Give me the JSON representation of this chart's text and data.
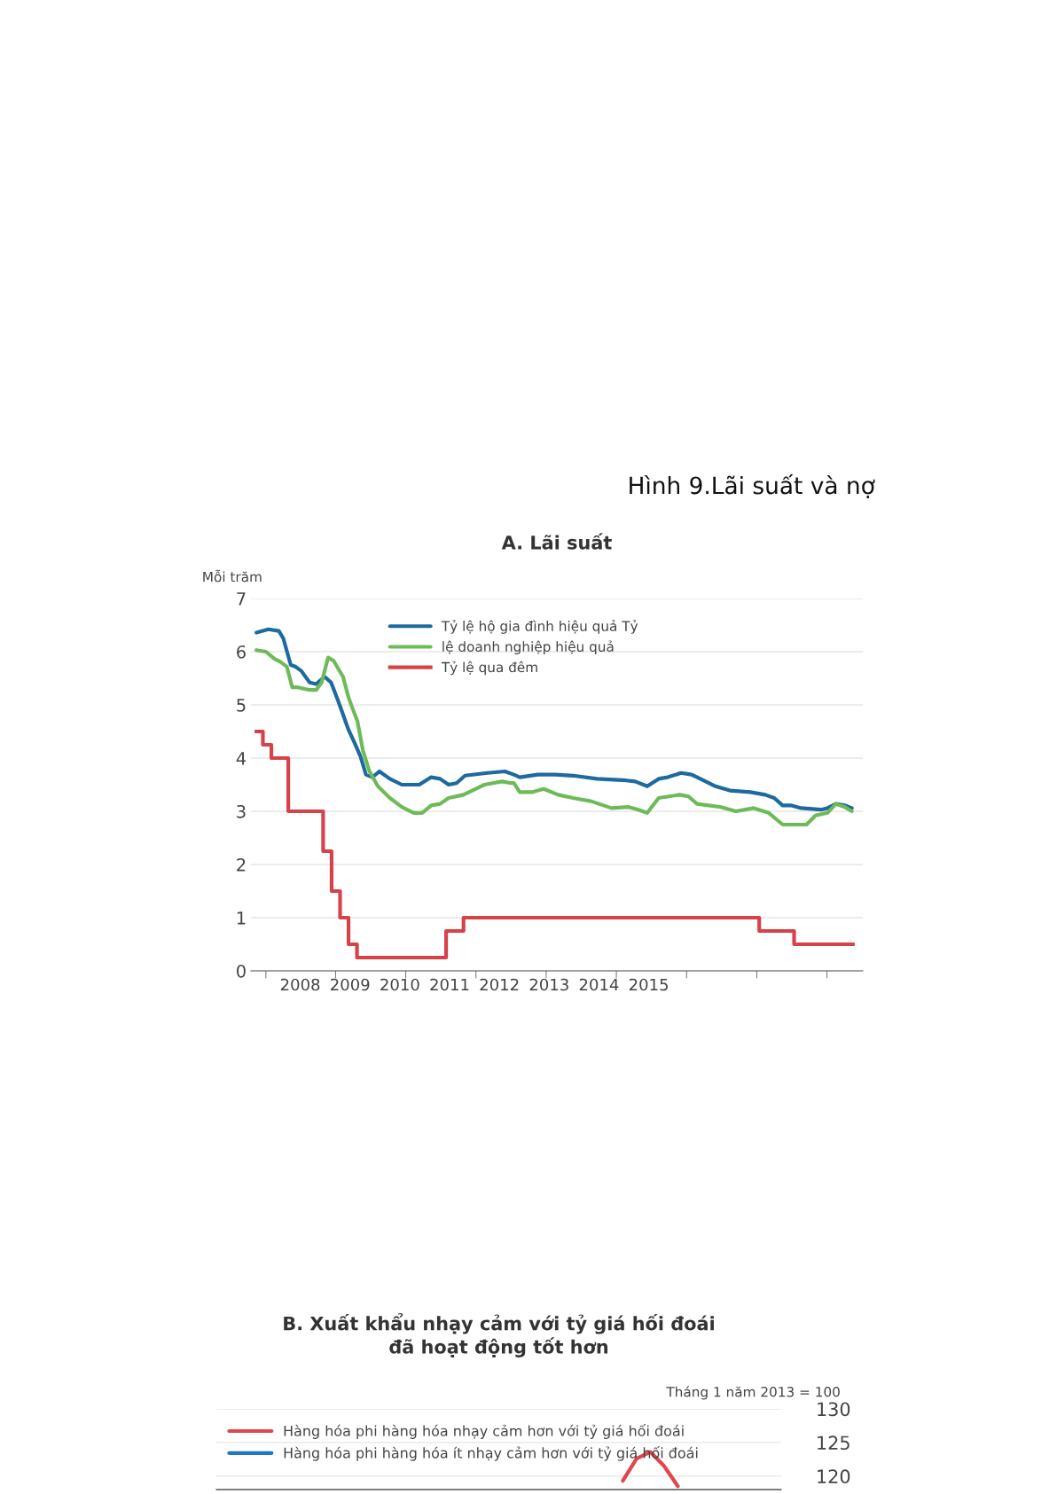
{
  "chart_data": [
    {
      "type": "line",
      "title": "A. Lãi suất",
      "ylabel": "Mỗi trăm",
      "annotations": [
        "Hình 9.Lãi suất và nợ"
      ],
      "xlim": [
        2007.01,
        2019.3
      ],
      "xticks": [
        {
          "value": 2007.31,
          "label": null
        },
        {
          "value": 2008.71,
          "label": null
        },
        {
          "value": 2010.12,
          "label": null
        },
        {
          "value": 2011.53,
          "label": null
        },
        {
          "value": 2012.94,
          "label": null
        },
        {
          "value": 2014.35,
          "label": null
        },
        {
          "value": 2015.76,
          "label": null
        },
        {
          "value": 2017.17,
          "label": null
        },
        {
          "value": 2018.58,
          "label": null
        },
        2008,
        2009,
        2010,
        2011,
        2012,
        2013,
        2014,
        2015
      ],
      "ylim": [
        0,
        7
      ],
      "yticks": [
        0,
        1,
        2,
        3,
        4,
        5,
        6,
        7
      ],
      "grid": "y",
      "legend": "top",
      "series": [
        {
          "name": "Tỷ lệ hộ gia đình hiệu quả Tỷ",
          "color": "#1c6aa0",
          "x": [
            2007.12,
            2007.36,
            2007.57,
            2007.66,
            2007.81,
            2007.9,
            2008.02,
            2008.19,
            2008.32,
            2008.49,
            2008.62,
            2008.78,
            2008.97,
            2009.08,
            2009.21,
            2009.32,
            2009.45,
            2009.59,
            2009.8,
            2010.04,
            2010.39,
            2010.63,
            2010.81,
            2010.98,
            2011.14,
            2011.31,
            2011.76,
            2012.11,
            2012.29,
            2012.41,
            2012.77,
            2013.12,
            2013.48,
            2013.96,
            2014.55,
            2014.73,
            2014.97,
            2015.2,
            2015.38,
            2015.65,
            2015.86,
            2016.1,
            2016.34,
            2016.63,
            2017.04,
            2017.34,
            2017.52,
            2017.69,
            2017.87,
            2018.06,
            2018.46,
            2018.59,
            2018.76,
            2018.94,
            2019.08
          ],
          "values": [
            6.36,
            6.42,
            6.39,
            6.25,
            5.75,
            5.72,
            5.64,
            5.42,
            5.39,
            5.53,
            5.42,
            5.03,
            4.53,
            4.31,
            4.03,
            3.69,
            3.64,
            3.75,
            3.61,
            3.5,
            3.5,
            3.64,
            3.61,
            3.5,
            3.53,
            3.67,
            3.72,
            3.75,
            3.69,
            3.64,
            3.69,
            3.69,
            3.67,
            3.61,
            3.58,
            3.56,
            3.47,
            3.61,
            3.64,
            3.72,
            3.69,
            3.58,
            3.47,
            3.39,
            3.36,
            3.31,
            3.25,
            3.11,
            3.11,
            3.06,
            3.03,
            3.06,
            3.14,
            3.11,
            3.06
          ]
        },
        {
          "name": "lệ doanh nghiệp hiệu quả",
          "color": "#6dbb58",
          "x": [
            2007.12,
            2007.31,
            2007.49,
            2007.6,
            2007.73,
            2007.84,
            2007.95,
            2008.19,
            2008.32,
            2008.43,
            2008.56,
            2008.67,
            2008.86,
            2008.97,
            2009.08,
            2009.15,
            2009.26,
            2009.39,
            2009.56,
            2009.8,
            2010.04,
            2010.28,
            2010.45,
            2010.63,
            2010.81,
            2010.98,
            2011.28,
            2011.52,
            2011.7,
            2012.05,
            2012.24,
            2012.29,
            2012.41,
            2012.65,
            2012.89,
            2013.18,
            2013.48,
            2013.84,
            2014.25,
            2014.6,
            2014.79,
            2014.97,
            2015.2,
            2015.62,
            2015.8,
            2015.97,
            2016.45,
            2016.75,
            2017.11,
            2017.41,
            2017.69,
            2018.17,
            2018.35,
            2018.59,
            2018.76,
            2018.94,
            2019.08
          ],
          "values": [
            6.03,
            6.0,
            5.86,
            5.81,
            5.72,
            5.33,
            5.33,
            5.28,
            5.28,
            5.42,
            5.89,
            5.83,
            5.53,
            5.14,
            4.86,
            4.69,
            4.14,
            3.75,
            3.47,
            3.25,
            3.08,
            2.97,
            2.97,
            3.11,
            3.14,
            3.25,
            3.31,
            3.42,
            3.5,
            3.56,
            3.53,
            3.53,
            3.36,
            3.36,
            3.42,
            3.31,
            3.25,
            3.19,
            3.06,
            3.08,
            3.03,
            2.97,
            3.25,
            3.31,
            3.28,
            3.14,
            3.08,
            3.0,
            3.06,
            2.97,
            2.75,
            2.75,
            2.92,
            2.97,
            3.14,
            3.08,
            3.0
          ]
        },
        {
          "name": "Tỷ lệ qua đêm",
          "type": "step",
          "color": "#d6424a",
          "x": [
            2007.12,
            2007.25,
            2007.42,
            2007.76,
            2008.46,
            2008.63,
            2008.8,
            2008.97,
            2009.14,
            2010.93,
            2011.28,
            2017.22,
            2017.92,
            2019.1
          ],
          "values": [
            4.5,
            4.25,
            4.0,
            3.0,
            2.25,
            1.5,
            1.0,
            0.5,
            0.25,
            0.75,
            1.0,
            0.75,
            0.5,
            0.5
          ]
        }
      ]
    },
    {
      "type": "line",
      "title": "B. Xuất khẩu nhạy cảm với tỷ giá hối đoái\nđã hoạt động tốt hơn",
      "ylabel": "Tháng 1 năm 2013 = 100",
      "categories": [
        null,
        null,
        null,
        null,
        null,
        null,
        null,
        null,
        null,
        null,
        null,
        null,
        null,
        null,
        null,
        null,
        null,
        null,
        null,
        null,
        null,
        null,
        null,
        null,
        null,
        null,
        null,
        null,
        null,
        null,
        null,
        null,
        null,
        null,
        null,
        null,
        null,
        null,
        null,
        null,
        null
      ],
      "ylim": [
        118,
        130
      ],
      "yticks": [
        120,
        125,
        130
      ],
      "grid": "y",
      "legend": "top left",
      "tick_labels": "y",
      "series": [
        {
          "name": "Hàng hóa phi hàng hóa nhạy cảm hơn với tỷ giá hối đoái",
          "color": "#e0474c",
          "values": [
            null,
            null,
            null,
            null,
            null,
            null,
            null,
            null,
            null,
            null,
            null,
            null,
            null,
            null,
            null,
            null,
            null,
            null,
            null,
            null,
            null,
            null,
            null,
            null,
            null,
            null,
            null,
            null,
            null,
            119.3,
            122.6,
            123.6,
            121.5,
            118.5,
            null,
            null,
            null,
            null,
            null,
            null,
            null
          ]
        },
        {
          "name": "Hàng hóa phi hàng hóa ít nhạy cảm hơn với tỷ giá hối đoái",
          "color": "#1f77c4",
          "values": [
            null,
            null,
            null,
            null,
            null,
            null,
            null,
            null,
            null,
            null,
            null,
            null,
            null,
            null,
            null,
            null,
            null,
            null,
            null,
            null,
            null,
            null,
            null,
            null,
            null,
            null,
            null,
            null,
            null,
            null,
            null,
            null,
            null,
            null,
            null,
            null,
            null,
            null,
            null,
            null,
            null
          ]
        }
      ]
    }
  ]
}
